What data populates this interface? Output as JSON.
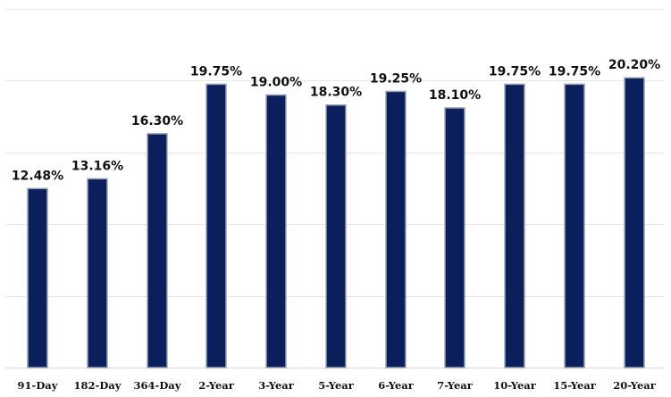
{
  "chart_data": {
    "type": "bar",
    "title": "",
    "xlabel": "",
    "ylabel": "",
    "categories": [
      "91-Day",
      "182-Day",
      "364-Day",
      "2-Year",
      "3-Year",
      "5-Year",
      "6-Year",
      "7-Year",
      "10-Year",
      "15-Year",
      "20-Year"
    ],
    "values": [
      12.48,
      13.16,
      16.3,
      19.75,
      19.0,
      18.3,
      19.25,
      18.1,
      19.75,
      19.75,
      20.2
    ],
    "data_labels": [
      "12.48%",
      "13.16%",
      "16.30%",
      "19.75%",
      "19.00%",
      "18.30%",
      "19.25%",
      "18.10%",
      "19.75%",
      "19.75%",
      "20.20%"
    ],
    "ylim": [
      0,
      25
    ],
    "ytick_step": 5,
    "show_y_tick_labels": false,
    "grid": true,
    "legend": "none",
    "colors": {
      "bar_fill": "#0b1f5c",
      "bar_edge": "#9aa3b5",
      "grid": "#e6e6e6"
    }
  }
}
